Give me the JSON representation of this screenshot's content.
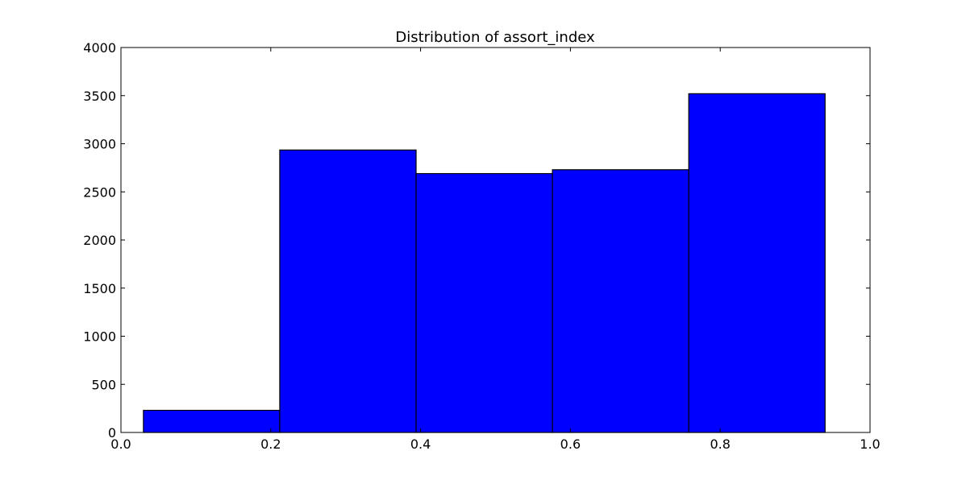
{
  "chart_data": {
    "type": "bar",
    "title": "Distribution of assort_index",
    "xlabel": "",
    "ylabel": "",
    "xlim": [
      0.0,
      1.0
    ],
    "ylim": [
      0,
      4000
    ],
    "x_ticks": [
      0.0,
      0.2,
      0.4,
      0.6,
      0.8,
      1.0
    ],
    "x_tick_labels": [
      "0.0",
      "0.2",
      "0.4",
      "0.6",
      "0.8",
      "1.0"
    ],
    "y_ticks": [
      0,
      500,
      1000,
      1500,
      2000,
      2500,
      3000,
      3500,
      4000
    ],
    "y_tick_labels": [
      "0",
      "500",
      "1000",
      "1500",
      "2000",
      "2500",
      "3000",
      "3500",
      "4000"
    ],
    "bins": [
      {
        "x_start": 0.03,
        "x_end": 0.212,
        "value": 230
      },
      {
        "x_start": 0.212,
        "x_end": 0.394,
        "value": 2935
      },
      {
        "x_start": 0.394,
        "x_end": 0.576,
        "value": 2690
      },
      {
        "x_start": 0.576,
        "x_end": 0.758,
        "value": 2730
      },
      {
        "x_start": 0.758,
        "x_end": 0.94,
        "value": 3520
      }
    ],
    "grid": false,
    "legend": "none",
    "bar_color": "#0000ff",
    "edge_color": "#000000"
  }
}
